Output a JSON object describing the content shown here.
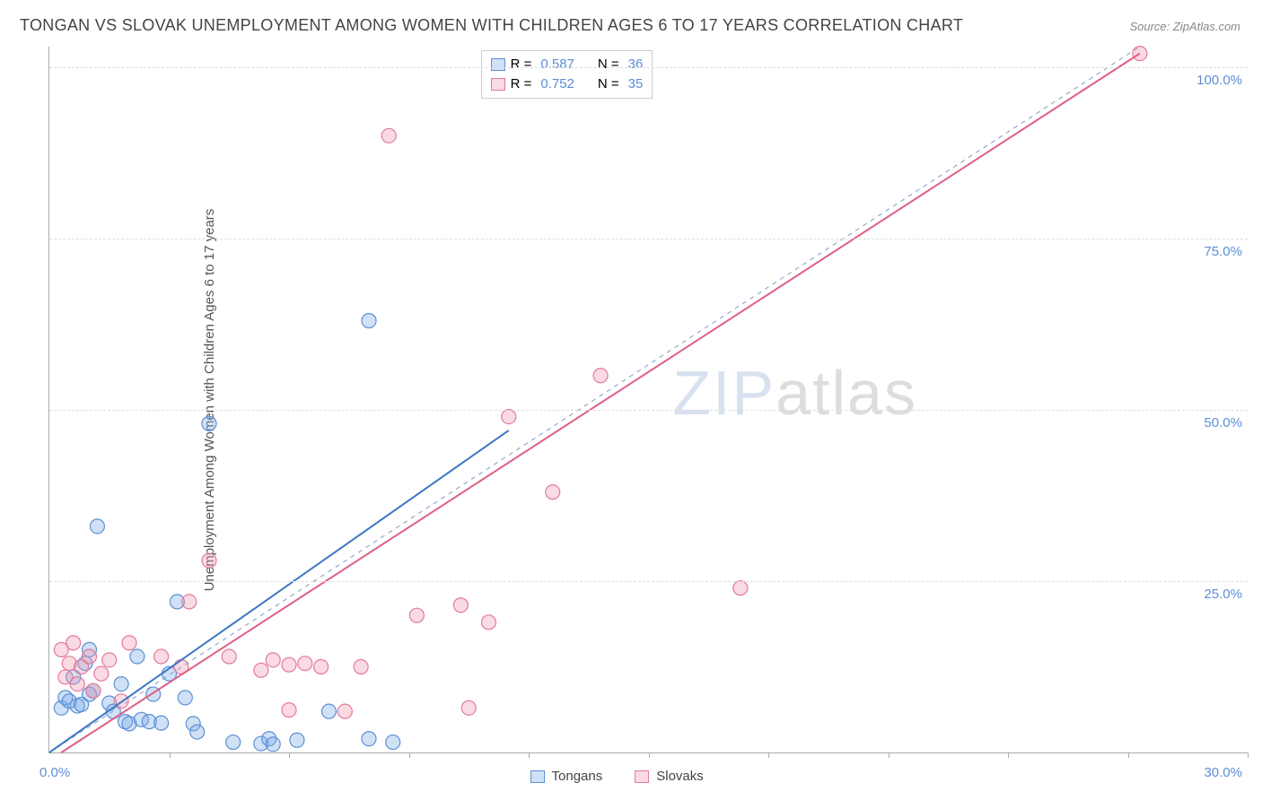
{
  "title": "TONGAN VS SLOVAK UNEMPLOYMENT AMONG WOMEN WITH CHILDREN AGES 6 TO 17 YEARS CORRELATION CHART",
  "source": "Source: ZipAtlas.com",
  "ylabel": "Unemployment Among Women with Children Ages 6 to 17 years",
  "watermark_a": "ZIP",
  "watermark_b": "atlas",
  "chart": {
    "type": "scatter",
    "xlim": [
      0,
      30
    ],
    "ylim": [
      0,
      103
    ],
    "xtick_step": 3,
    "ytick_labels": [
      "25.0%",
      "50.0%",
      "75.0%",
      "100.0%"
    ],
    "ytick_values": [
      25,
      50,
      75,
      100
    ],
    "xlabel_start": "0.0%",
    "xlabel_end": "30.0%",
    "background_color": "#ffffff",
    "grid_color": "#dddddd",
    "axis_color": "#aaaaaa",
    "marker_radius": 8,
    "marker_stroke_width": 1.2,
    "line_width": 2,
    "identity_line": {
      "color": "#8faad0",
      "dash": "5,5",
      "from": [
        0,
        0
      ],
      "to": [
        27.3,
        103
      ]
    },
    "series": [
      {
        "name": "Tongans",
        "color_fill": "rgba(120,170,230,0.35)",
        "color_stroke": "#5b8fd6",
        "line_color": "#3f78c4",
        "r_value": "0.587",
        "n_value": "36",
        "trend": {
          "from": [
            0,
            0
          ],
          "to": [
            11.5,
            47
          ]
        },
        "points": [
          [
            0.3,
            6.5
          ],
          [
            0.4,
            8
          ],
          [
            0.5,
            7.5
          ],
          [
            0.6,
            11
          ],
          [
            0.7,
            6.8
          ],
          [
            0.8,
            7
          ],
          [
            0.9,
            13
          ],
          [
            1.0,
            8.5
          ],
          [
            1.0,
            15
          ],
          [
            1.1,
            9
          ],
          [
            1.2,
            33
          ],
          [
            1.5,
            7.2
          ],
          [
            1.6,
            6
          ],
          [
            1.8,
            10
          ],
          [
            1.9,
            4.5
          ],
          [
            2.0,
            4.2
          ],
          [
            2.2,
            14
          ],
          [
            2.3,
            4.8
          ],
          [
            2.5,
            4.5
          ],
          [
            2.6,
            8.5
          ],
          [
            2.8,
            4.3
          ],
          [
            3.0,
            11.5
          ],
          [
            3.2,
            22
          ],
          [
            3.4,
            8
          ],
          [
            3.6,
            4.2
          ],
          [
            3.7,
            3
          ],
          [
            4.0,
            48
          ],
          [
            4.6,
            1.5
          ],
          [
            5.3,
            1.3
          ],
          [
            5.5,
            2
          ],
          [
            5.6,
            1.2
          ],
          [
            6.2,
            1.8
          ],
          [
            7.0,
            6
          ],
          [
            8.0,
            63
          ],
          [
            8.0,
            2
          ],
          [
            8.6,
            1.5
          ]
        ]
      },
      {
        "name": "Slovaks",
        "color_fill": "rgba(240,150,175,0.35)",
        "color_stroke": "#e37a9a",
        "line_color": "#df5f86",
        "r_value": "0.752",
        "n_value": "35",
        "trend": {
          "from": [
            0.3,
            0
          ],
          "to": [
            27.3,
            102
          ]
        },
        "points": [
          [
            0.3,
            15
          ],
          [
            0.4,
            11
          ],
          [
            0.5,
            13
          ],
          [
            0.6,
            16
          ],
          [
            0.7,
            10
          ],
          [
            0.8,
            12.5
          ],
          [
            1.0,
            14
          ],
          [
            1.1,
            9
          ],
          [
            1.3,
            11.5
          ],
          [
            1.5,
            13.5
          ],
          [
            1.8,
            7.5
          ],
          [
            2.0,
            16
          ],
          [
            2.8,
            14
          ],
          [
            3.3,
            12.5
          ],
          [
            3.5,
            22
          ],
          [
            4.0,
            28
          ],
          [
            4.5,
            14
          ],
          [
            5.3,
            12
          ],
          [
            5.6,
            13.5
          ],
          [
            6.0,
            12.8
          ],
          [
            6.0,
            6.2
          ],
          [
            6.4,
            13
          ],
          [
            6.8,
            12.5
          ],
          [
            7.4,
            6
          ],
          [
            7.8,
            12.5
          ],
          [
            8.5,
            90
          ],
          [
            9.2,
            20
          ],
          [
            10.3,
            21.5
          ],
          [
            10.5,
            6.5
          ],
          [
            11.0,
            19
          ],
          [
            11.5,
            49
          ],
          [
            12.6,
            38
          ],
          [
            13.8,
            55
          ],
          [
            17.3,
            24
          ],
          [
            27.3,
            102
          ]
        ]
      }
    ]
  },
  "legend_labels": {
    "r_prefix": "R =",
    "n_prefix": "N ="
  }
}
